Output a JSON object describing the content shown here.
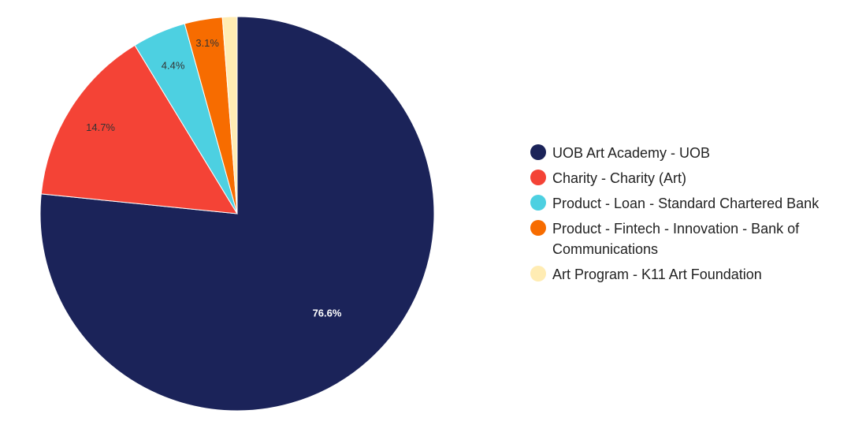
{
  "chart_data": {
    "type": "pie",
    "categories": [
      "UOB Art Academy - UOB",
      "Charity - Charity (Art)",
      "Product - Loan - Standard Chartered Bank",
      "Product - Fintech - Innovation - Bank of Communications",
      "Art Program - K11 Art Foundation"
    ],
    "values": [
      76.6,
      14.7,
      4.4,
      3.1,
      1.2
    ],
    "labels": [
      "76.6%",
      "14.7%",
      "4.4%",
      "3.1%",
      ""
    ],
    "colors": [
      "#1b2359",
      "#f44336",
      "#4dd0e1",
      "#f76c00",
      "#ffecb3"
    ],
    "label_colors": [
      "#ffffff",
      "#333333",
      "#333333",
      "#333333",
      "#333333"
    ],
    "legend_position": "right",
    "start_angle": "12 o'clock",
    "direction": "clockwise"
  }
}
